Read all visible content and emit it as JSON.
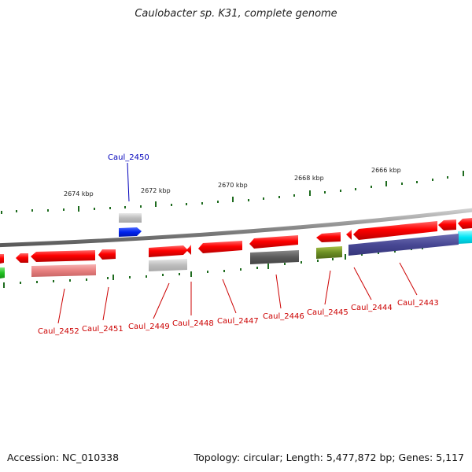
{
  "title": "Caulobacter sp. K31, complete genome",
  "footer": {
    "accession": "Accession: NC_010338",
    "summary": "Topology: circular; Length: 5,477,872 bp; Genes: 5,117"
  },
  "colors": {
    "backbone": "#8a8a8a",
    "tick": "#1e6b1e",
    "label_red": "#cc0000",
    "label_blue": "#0000bb"
  },
  "scale_labels": [
    "2674 kbp",
    "2672 kbp",
    "2670 kbp",
    "2668 kbp",
    "2666 kbp"
  ],
  "gene_labels": [
    {
      "text": "Caul_2450",
      "color": "blue"
    },
    {
      "text": "Caul_2452",
      "color": "red"
    },
    {
      "text": "Caul_2451",
      "color": "red"
    },
    {
      "text": "Caul_2449",
      "color": "red"
    },
    {
      "text": "Caul_2448",
      "color": "red"
    },
    {
      "text": "Caul_2447",
      "color": "red"
    },
    {
      "text": "Caul_2446",
      "color": "red"
    },
    {
      "text": "Caul_2445",
      "color": "red"
    },
    {
      "text": "Caul_2444",
      "color": "red"
    },
    {
      "text": "Caul_2443",
      "color": "red"
    }
  ]
}
